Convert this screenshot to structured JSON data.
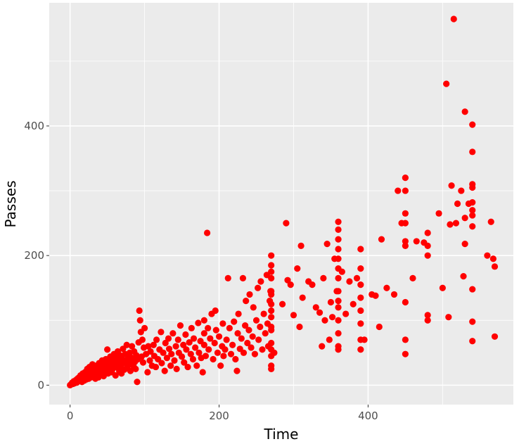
{
  "chart_data": {
    "type": "scatter",
    "title": "",
    "xlabel": "Time",
    "ylabel": "Passes",
    "xlim": [
      -28,
      595
    ],
    "ylim": [
      -30,
      590
    ],
    "x_ticks": [
      0,
      200,
      400
    ],
    "y_ticks": [
      0,
      200,
      400
    ],
    "x_minor": [
      100,
      300,
      500
    ],
    "y_minor": [
      100,
      300,
      500
    ],
    "grid": true,
    "legend": "none",
    "colors": {
      "panel": "#ebebeb",
      "grid": "#ffffff",
      "point": "#ff0000",
      "tick_text": "#4d4d4d",
      "axis_title": "#000000"
    },
    "points": [
      [
        0,
        0
      ],
      [
        1,
        1
      ],
      [
        2,
        2
      ],
      [
        3,
        4
      ],
      [
        4,
        2
      ],
      [
        5,
        6
      ],
      [
        6,
        3
      ],
      [
        7,
        5
      ],
      [
        8,
        8
      ],
      [
        9,
        4
      ],
      [
        10,
        10
      ],
      [
        11,
        6
      ],
      [
        12,
        12
      ],
      [
        13,
        8
      ],
      [
        14,
        15
      ],
      [
        15,
        9
      ],
      [
        16,
        5
      ],
      [
        17,
        18
      ],
      [
        18,
        11
      ],
      [
        19,
        7
      ],
      [
        20,
        20
      ],
      [
        21,
        14
      ],
      [
        22,
        9
      ],
      [
        23,
        25
      ],
      [
        24,
        16
      ],
      [
        25,
        10
      ],
      [
        26,
        28
      ],
      [
        27,
        18
      ],
      [
        28,
        12
      ],
      [
        29,
        22
      ],
      [
        30,
        32
      ],
      [
        31,
        20
      ],
      [
        32,
        14
      ],
      [
        33,
        24
      ],
      [
        34,
        10
      ],
      [
        35,
        30
      ],
      [
        36,
        18
      ],
      [
        37,
        26
      ],
      [
        38,
        12
      ],
      [
        39,
        34
      ],
      [
        40,
        22
      ],
      [
        41,
        30
      ],
      [
        42,
        16
      ],
      [
        43,
        38
      ],
      [
        44,
        25
      ],
      [
        45,
        14
      ],
      [
        46,
        32
      ],
      [
        47,
        20
      ],
      [
        48,
        40
      ],
      [
        49,
        28
      ],
      [
        50,
        55
      ],
      [
        51,
        18
      ],
      [
        52,
        36
      ],
      [
        53,
        24
      ],
      [
        54,
        44
      ],
      [
        55,
        30
      ],
      [
        56,
        20
      ],
      [
        57,
        38
      ],
      [
        58,
        26
      ],
      [
        59,
        48
      ],
      [
        60,
        33
      ],
      [
        61,
        15
      ],
      [
        62,
        42
      ],
      [
        63,
        28
      ],
      [
        64,
        52
      ],
      [
        65,
        36
      ],
      [
        66,
        22
      ],
      [
        67,
        46
      ],
      [
        68,
        30
      ],
      [
        69,
        18
      ],
      [
        70,
        40
      ],
      [
        71,
        56
      ],
      [
        72,
        34
      ],
      [
        73,
        24
      ],
      [
        74,
        48
      ],
      [
        75,
        38
      ],
      [
        76,
        62
      ],
      [
        77,
        28
      ],
      [
        78,
        44
      ],
      [
        79,
        32
      ],
      [
        80,
        50
      ],
      [
        81,
        22
      ],
      [
        82,
        38
      ],
      [
        83,
        60
      ],
      [
        84,
        42
      ],
      [
        85,
        30
      ],
      [
        86,
        52
      ],
      [
        87,
        36
      ],
      [
        88,
        25
      ],
      [
        89,
        46
      ],
      [
        90,
        5
      ],
      [
        91,
        40
      ],
      [
        92,
        66
      ],
      [
        93,
        115
      ],
      [
        94,
        100
      ],
      [
        95,
        82
      ],
      [
        96,
        44
      ],
      [
        97,
        70
      ],
      [
        98,
        35
      ],
      [
        99,
        58
      ],
      [
        100,
        88
      ],
      [
        102,
        48
      ],
      [
        104,
        20
      ],
      [
        105,
        60
      ],
      [
        107,
        38
      ],
      [
        108,
        52
      ],
      [
        110,
        30
      ],
      [
        112,
        62
      ],
      [
        113,
        45
      ],
      [
        115,
        28
      ],
      [
        116,
        70
      ],
      [
        118,
        40
      ],
      [
        120,
        55
      ],
      [
        122,
        82
      ],
      [
        123,
        34
      ],
      [
        125,
        50
      ],
      [
        127,
        22
      ],
      [
        128,
        65
      ],
      [
        130,
        42
      ],
      [
        132,
        72
      ],
      [
        133,
        56
      ],
      [
        135,
        30
      ],
      [
        136,
        48
      ],
      [
        138,
        80
      ],
      [
        140,
        38
      ],
      [
        142,
        60
      ],
      [
        143,
        25
      ],
      [
        145,
        70
      ],
      [
        146,
        50
      ],
      [
        148,
        92
      ],
      [
        150,
        44
      ],
      [
        152,
        62
      ],
      [
        153,
        35
      ],
      [
        155,
        78
      ],
      [
        156,
        55
      ],
      [
        158,
        28
      ],
      [
        160,
        66
      ],
      [
        162,
        48
      ],
      [
        163,
        88
      ],
      [
        165,
        40
      ],
      [
        166,
        72
      ],
      [
        168,
        58
      ],
      [
        170,
        30
      ],
      [
        172,
        96
      ],
      [
        173,
        50
      ],
      [
        175,
        68
      ],
      [
        176,
        42
      ],
      [
        178,
        20
      ],
      [
        180,
        62
      ],
      [
        180,
        80
      ],
      [
        180,
        100
      ],
      [
        182,
        45
      ],
      [
        184,
        235
      ],
      [
        185,
        88
      ],
      [
        186,
        55
      ],
      [
        188,
        72
      ],
      [
        190,
        110
      ],
      [
        192,
        40
      ],
      [
        194,
        65
      ],
      [
        195,
        115
      ],
      [
        196,
        85
      ],
      [
        198,
        50
      ],
      [
        200,
        75
      ],
      [
        202,
        30
      ],
      [
        204,
        60
      ],
      [
        205,
        95
      ],
      [
        206,
        45
      ],
      [
        208,
        55
      ],
      [
        210,
        70
      ],
      [
        212,
        165
      ],
      [
        214,
        88
      ],
      [
        216,
        48
      ],
      [
        218,
        62
      ],
      [
        220,
        98
      ],
      [
        222,
        40
      ],
      [
        224,
        22
      ],
      [
        225,
        80
      ],
      [
        226,
        110
      ],
      [
        228,
        56
      ],
      [
        230,
        72
      ],
      [
        232,
        165
      ],
      [
        233,
        50
      ],
      [
        235,
        92
      ],
      [
        236,
        130
      ],
      [
        238,
        65
      ],
      [
        240,
        85
      ],
      [
        241,
        140
      ],
      [
        243,
        58
      ],
      [
        245,
        75
      ],
      [
        246,
        120
      ],
      [
        248,
        48
      ],
      [
        250,
        100
      ],
      [
        252,
        150
      ],
      [
        253,
        70
      ],
      [
        255,
        90
      ],
      [
        256,
        160
      ],
      [
        258,
        55
      ],
      [
        260,
        110
      ],
      [
        262,
        80
      ],
      [
        264,
        170
      ],
      [
        265,
        95
      ],
      [
        266,
        60
      ],
      [
        268,
        130
      ],
      [
        269,
        145
      ],
      [
        270,
        25
      ],
      [
        270,
        45
      ],
      [
        270,
        65
      ],
      [
        270,
        85
      ],
      [
        270,
        105
      ],
      [
        270,
        125
      ],
      [
        270,
        145
      ],
      [
        270,
        165
      ],
      [
        270,
        185
      ],
      [
        270,
        200
      ],
      [
        270,
        30
      ],
      [
        270,
        55
      ],
      [
        270,
        90
      ],
      [
        270,
        115
      ],
      [
        270,
        140
      ],
      [
        270,
        175
      ],
      [
        274,
        50
      ],
      [
        285,
        125
      ],
      [
        290,
        250
      ],
      [
        292,
        162
      ],
      [
        296,
        155
      ],
      [
        300,
        108
      ],
      [
        305,
        180
      ],
      [
        308,
        90
      ],
      [
        310,
        215
      ],
      [
        312,
        135
      ],
      [
        320,
        160
      ],
      [
        325,
        155
      ],
      [
        330,
        120
      ],
      [
        335,
        112
      ],
      [
        338,
        60
      ],
      [
        340,
        165
      ],
      [
        342,
        100
      ],
      [
        345,
        218
      ],
      [
        348,
        70
      ],
      [
        350,
        128
      ],
      [
        352,
        105
      ],
      [
        355,
        195
      ],
      [
        358,
        145
      ],
      [
        360,
        55
      ],
      [
        360,
        80
      ],
      [
        360,
        100
      ],
      [
        360,
        120
      ],
      [
        360,
        145
      ],
      [
        360,
        165
      ],
      [
        360,
        180
      ],
      [
        360,
        195
      ],
      [
        360,
        210
      ],
      [
        360,
        225
      ],
      [
        360,
        240
      ],
      [
        360,
        252
      ],
      [
        360,
        60
      ],
      [
        360,
        130
      ],
      [
        365,
        175
      ],
      [
        370,
        110
      ],
      [
        375,
        160
      ],
      [
        380,
        125
      ],
      [
        385,
        165
      ],
      [
        390,
        55
      ],
      [
        390,
        70
      ],
      [
        390,
        95
      ],
      [
        390,
        115
      ],
      [
        390,
        135
      ],
      [
        390,
        155
      ],
      [
        390,
        180
      ],
      [
        390,
        210
      ],
      [
        395,
        70
      ],
      [
        405,
        140
      ],
      [
        410,
        138
      ],
      [
        415,
        90
      ],
      [
        418,
        225
      ],
      [
        425,
        150
      ],
      [
        435,
        140
      ],
      [
        440,
        300
      ],
      [
        445,
        250
      ],
      [
        450,
        48
      ],
      [
        450,
        70
      ],
      [
        450,
        128
      ],
      [
        450,
        215
      ],
      [
        450,
        222
      ],
      [
        450,
        250
      ],
      [
        450,
        265
      ],
      [
        450,
        300
      ],
      [
        450,
        320
      ],
      [
        460,
        165
      ],
      [
        465,
        222
      ],
      [
        475,
        220
      ],
      [
        480,
        100
      ],
      [
        480,
        108
      ],
      [
        480,
        200
      ],
      [
        480,
        215
      ],
      [
        480,
        235
      ],
      [
        495,
        265
      ],
      [
        500,
        150
      ],
      [
        505,
        465
      ],
      [
        508,
        105
      ],
      [
        510,
        248
      ],
      [
        512,
        308
      ],
      [
        515,
        565
      ],
      [
        518,
        250
      ],
      [
        520,
        280
      ],
      [
        525,
        300
      ],
      [
        528,
        168
      ],
      [
        530,
        218
      ],
      [
        530,
        258
      ],
      [
        530,
        422
      ],
      [
        535,
        280
      ],
      [
        540,
        68
      ],
      [
        540,
        98
      ],
      [
        540,
        148
      ],
      [
        540,
        245
      ],
      [
        540,
        262
      ],
      [
        540,
        270
      ],
      [
        540,
        282
      ],
      [
        540,
        305
      ],
      [
        540,
        310
      ],
      [
        540,
        360
      ],
      [
        540,
        402
      ],
      [
        560,
        200
      ],
      [
        565,
        252
      ],
      [
        568,
        195
      ],
      [
        570,
        183
      ],
      [
        570,
        75
      ]
    ]
  }
}
